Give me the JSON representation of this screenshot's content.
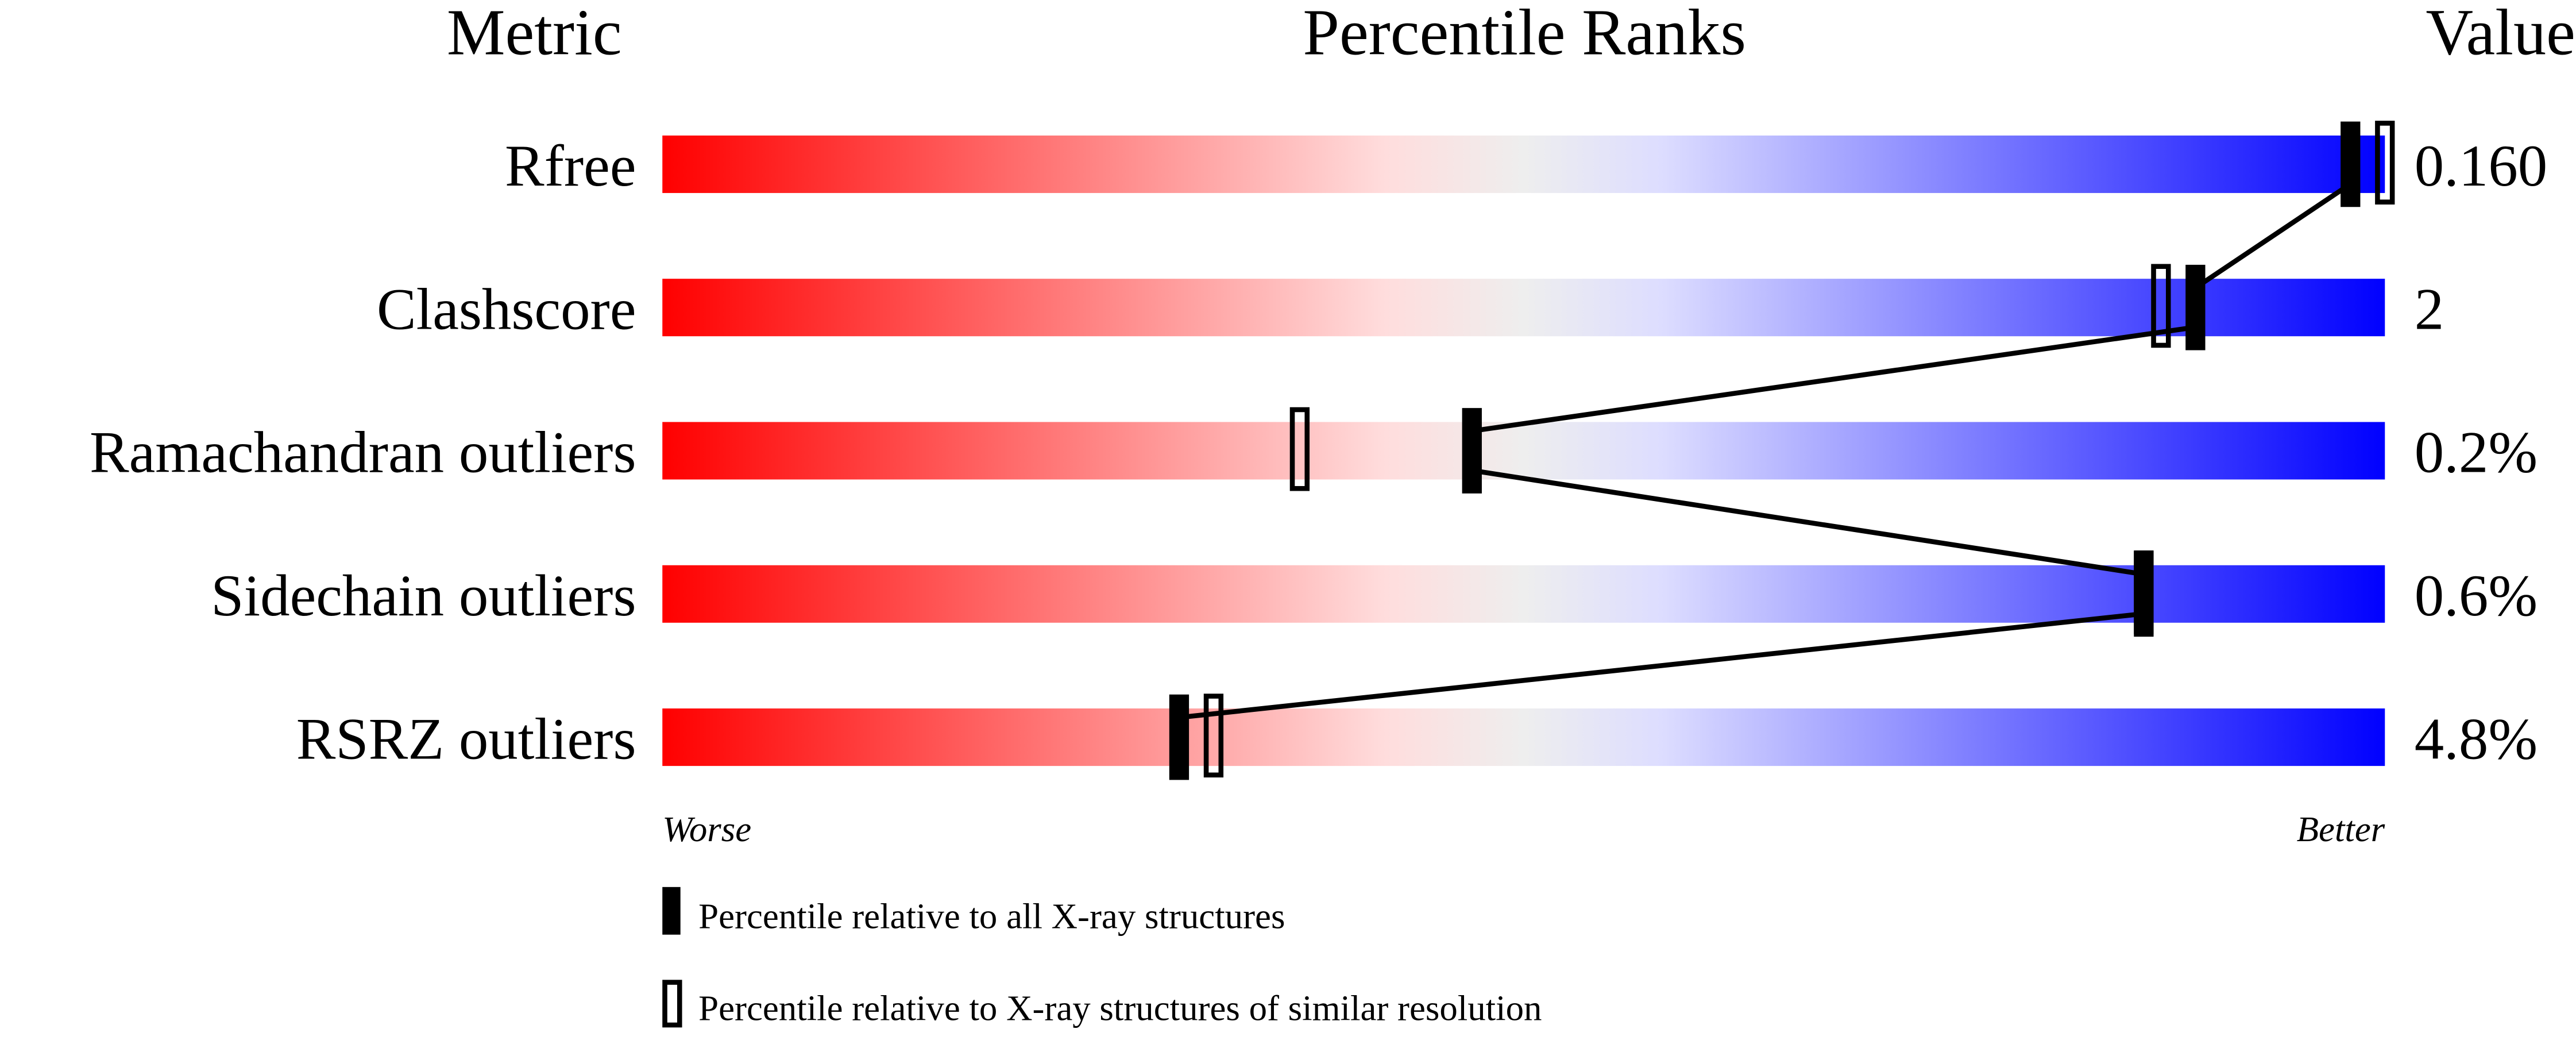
{
  "chart_data": {
    "type": "percentile-slider",
    "headers": {
      "metric": "Metric",
      "ranks": "Percentile Ranks",
      "value": "Value"
    },
    "xlim": [
      0,
      100
    ],
    "axis_labels": {
      "left": "Worse",
      "right": "Better"
    },
    "gradient_colors": [
      "#ff0000",
      "#ffdddd",
      "#eeeeee",
      "#ddddff",
      "#0000ff"
    ],
    "rows": [
      {
        "metric": "Rfree",
        "value": "0.160",
        "percentile_all": 98,
        "percentile_similar": 100
      },
      {
        "metric": "Clashscore",
        "value": "2",
        "percentile_all": 89,
        "percentile_similar": 87
      },
      {
        "metric": "Ramachandran outliers",
        "value": "0.2%",
        "percentile_all": 47,
        "percentile_similar": 37
      },
      {
        "metric": "Sidechain outliers",
        "value": "0.6%",
        "percentile_all": 86,
        "percentile_similar": 86
      },
      {
        "metric": "RSRZ outliers",
        "value": "4.8%",
        "percentile_all": 30,
        "percentile_similar": 32
      }
    ],
    "legend": [
      {
        "marker": "filled",
        "label": "Percentile relative to all X-ray structures"
      },
      {
        "marker": "open",
        "label": "Percentile relative to X-ray structures of similar resolution"
      }
    ]
  }
}
